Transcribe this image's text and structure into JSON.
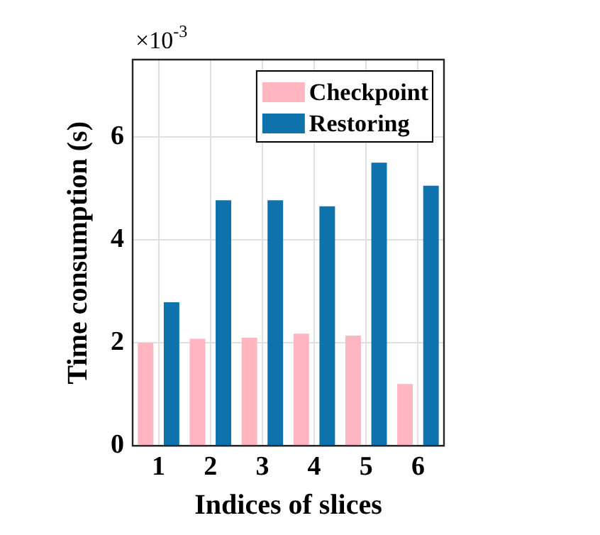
{
  "chart_data": {
    "type": "bar",
    "xlabel": "Indices of slices",
    "ylabel": "Time consumption (s)",
    "categories": [
      "1",
      "2",
      "3",
      "4",
      "5",
      "6"
    ],
    "series": [
      {
        "name": "Checkpoint",
        "color": "#ffb6c1",
        "values": [
          2.0,
          2.08,
          2.1,
          2.18,
          2.14,
          1.2
        ]
      },
      {
        "name": "Restoring",
        "color": "#0e72ad",
        "values": [
          2.79,
          4.77,
          4.77,
          4.65,
          5.5,
          5.05
        ]
      }
    ],
    "ylim": [
      0,
      7.5
    ],
    "yticks": [
      0,
      2,
      4,
      6
    ],
    "annotations": [
      "×10$^{-3}$"
    ],
    "grid": true,
    "legend": "top right"
  }
}
